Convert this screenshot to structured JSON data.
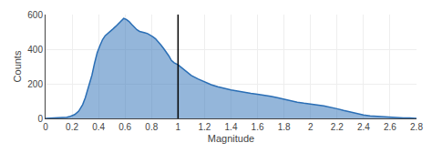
{
  "chart_data": {
    "type": "area",
    "xlabel": "Magnitude",
    "ylabel": "Counts",
    "x": [
      0.0,
      0.04,
      0.08,
      0.12,
      0.16,
      0.18,
      0.2,
      0.22,
      0.25,
      0.28,
      0.3,
      0.32,
      0.35,
      0.37,
      0.39,
      0.41,
      0.43,
      0.45,
      0.47,
      0.49,
      0.51,
      0.53,
      0.55,
      0.57,
      0.59,
      0.61,
      0.63,
      0.65,
      0.67,
      0.69,
      0.71,
      0.73,
      0.75,
      0.77,
      0.79,
      0.81,
      0.83,
      0.85,
      0.87,
      0.89,
      0.91,
      0.93,
      0.95,
      0.97,
      1.0,
      1.03,
      1.06,
      1.1,
      1.15,
      1.2,
      1.25,
      1.3,
      1.35,
      1.4,
      1.45,
      1.5,
      1.55,
      1.6,
      1.65,
      1.7,
      1.75,
      1.8,
      1.85,
      1.9,
      1.95,
      2.0,
      2.05,
      2.1,
      2.15,
      2.2,
      2.25,
      2.3,
      2.35,
      2.4,
      2.45,
      2.5,
      2.55,
      2.6,
      2.65,
      2.7,
      2.75,
      2.8
    ],
    "values": [
      0,
      1,
      2,
      4,
      7,
      10,
      15,
      22,
      42,
      80,
      120,
      170,
      250,
      320,
      380,
      420,
      455,
      478,
      493,
      505,
      518,
      532,
      548,
      565,
      578,
      572,
      560,
      543,
      528,
      512,
      503,
      497,
      495,
      490,
      482,
      472,
      460,
      445,
      425,
      405,
      385,
      362,
      335,
      322,
      310,
      292,
      270,
      248,
      228,
      210,
      195,
      183,
      173,
      165,
      158,
      150,
      145,
      140,
      135,
      128,
      120,
      110,
      100,
      94,
      88,
      84,
      78,
      72,
      65,
      56,
      46,
      36,
      27,
      20,
      15,
      12,
      9,
      7,
      5,
      3,
      2,
      0
    ],
    "color": "#2a6eb5",
    "xlim": [
      0,
      2.8
    ],
    "ylim": [
      0,
      600
    ],
    "xticks": [
      0,
      0.2,
      0.4,
      0.6,
      0.8,
      1,
      1.2,
      1.4,
      1.6,
      1.8,
      2,
      2.2,
      2.4,
      2.6,
      2.8
    ],
    "yticks": [
      0,
      200,
      400,
      600
    ],
    "vline": 1.0,
    "grid": true
  }
}
